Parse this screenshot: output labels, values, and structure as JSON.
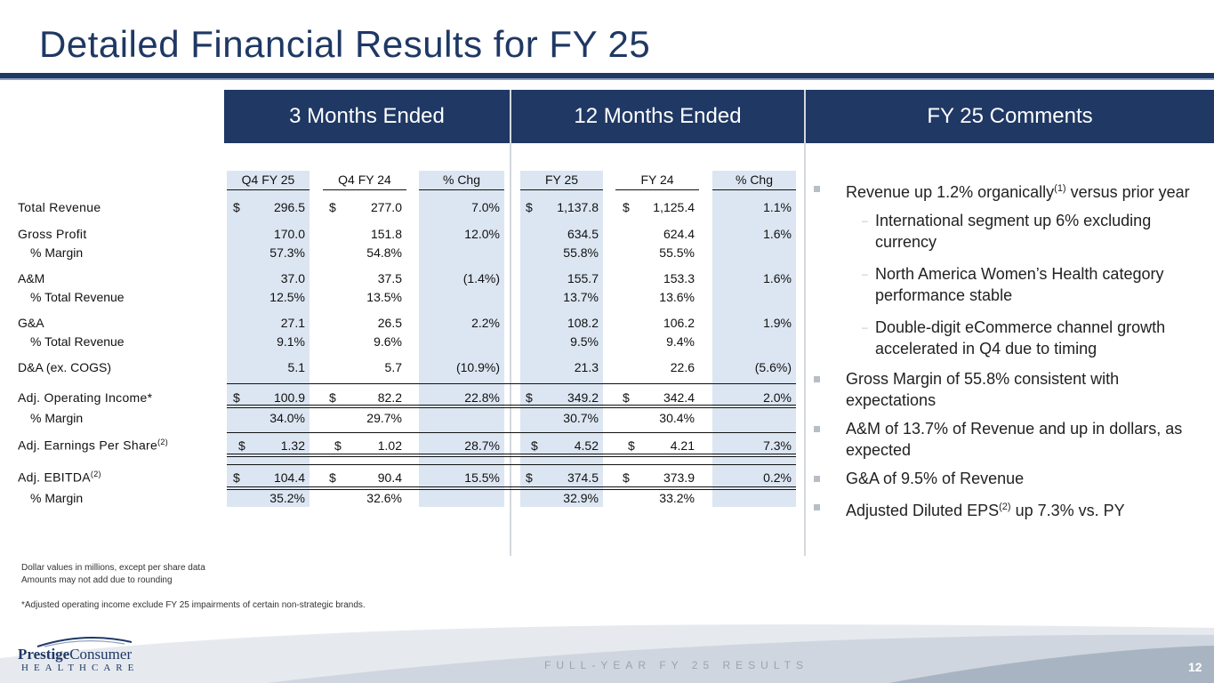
{
  "title": "Detailed Financial Results for FY 25",
  "headers": {
    "three_months": "3 Months Ended",
    "twelve_months": "12 Months Ended",
    "comments": "FY 25 Comments"
  },
  "columns": [
    "Q4 FY 25",
    "Q4 FY 24",
    "% Chg",
    "FY 25",
    "FY 24",
    "% Chg"
  ],
  "currency_symbol": "$",
  "rows": {
    "total_revenue": {
      "label": "Total Revenue",
      "values": [
        "296.5",
        "277.0",
        "7.0%",
        "1,137.8",
        "1,125.4",
        "1.1%"
      ]
    },
    "gross_profit": {
      "label": "Gross Profit",
      "values": [
        "170.0",
        "151.8",
        "12.0%",
        "634.5",
        "624.4",
        "1.6%"
      ]
    },
    "gp_margin": {
      "label": "% Margin",
      "values": [
        "57.3%",
        "54.8%",
        "",
        "55.8%",
        "55.5%",
        ""
      ]
    },
    "am": {
      "label": "A&M",
      "values": [
        "37.0",
        "37.5",
        "(1.4%)",
        "155.7",
        "153.3",
        "1.6%"
      ]
    },
    "am_pct": {
      "label": "% Total Revenue",
      "values": [
        "12.5%",
        "13.5%",
        "",
        "13.7%",
        "13.6%",
        ""
      ]
    },
    "ga": {
      "label": "G&A",
      "values": [
        "27.1",
        "26.5",
        "2.2%",
        "108.2",
        "106.2",
        "1.9%"
      ]
    },
    "ga_pct": {
      "label": "% Total Revenue",
      "values": [
        "9.1%",
        "9.6%",
        "",
        "9.5%",
        "9.4%",
        ""
      ]
    },
    "da": {
      "label": "D&A (ex. COGS)",
      "values": [
        "5.1",
        "5.7",
        "(10.9%)",
        "21.3",
        "22.6",
        "(5.6%)"
      ]
    },
    "adj_oi": {
      "label": "Adj. Operating Income*",
      "values": [
        "100.9",
        "82.2",
        "22.8%",
        "349.2",
        "342.4",
        "2.0%"
      ]
    },
    "oi_margin": {
      "label": "% Margin",
      "values": [
        "34.0%",
        "29.7%",
        "",
        "30.7%",
        "30.4%",
        ""
      ]
    },
    "adj_eps": {
      "label": "Adj. Earnings Per Share",
      "sup": "(2)",
      "values": [
        "1.32",
        "1.02",
        "28.7%",
        "4.52",
        "4.21",
        "7.3%"
      ]
    },
    "adj_ebitda": {
      "label": "Adj. EBITDA",
      "sup": "(2)",
      "values": [
        "104.4",
        "90.4",
        "15.5%",
        "374.5",
        "373.9",
        "0.2%"
      ]
    },
    "ebitda_margin": {
      "label": "% Margin",
      "values": [
        "35.2%",
        "32.6%",
        "",
        "32.9%",
        "33.2%",
        ""
      ]
    }
  },
  "comments": {
    "b1_pre": "Revenue up 1.2% organically",
    "b1_sup": "(1)",
    "b1_post": " versus prior year",
    "sub1": "International segment up 6% excluding currency",
    "sub2": "North America Women’s Health category performance stable",
    "sub3": "Double-digit eCommerce channel growth accelerated in Q4 due to timing",
    "b2": "Gross Margin of 55.8% consistent with expectations",
    "b3": "A&M of 13.7% of Revenue and up in dollars, as expected",
    "b4": "G&A of 9.5% of Revenue",
    "b5_pre": "Adjusted Diluted EPS",
    "b5_sup": "(2)",
    "b5_post": " up 7.3% vs. PY"
  },
  "notes": {
    "n1": "Dollar values in millions, except per share data",
    "n2": "Amounts may not add due to rounding",
    "n3": "*Adjusted operating income exclude FY 25 impairments of certain non-strategic brands."
  },
  "footer": {
    "text": "FULL-YEAR FY 25 RESULTS",
    "page": "12",
    "logo_top_bold": "Prestige",
    "logo_top": "Consumer",
    "logo_bottom": "HEALTHCARE"
  }
}
